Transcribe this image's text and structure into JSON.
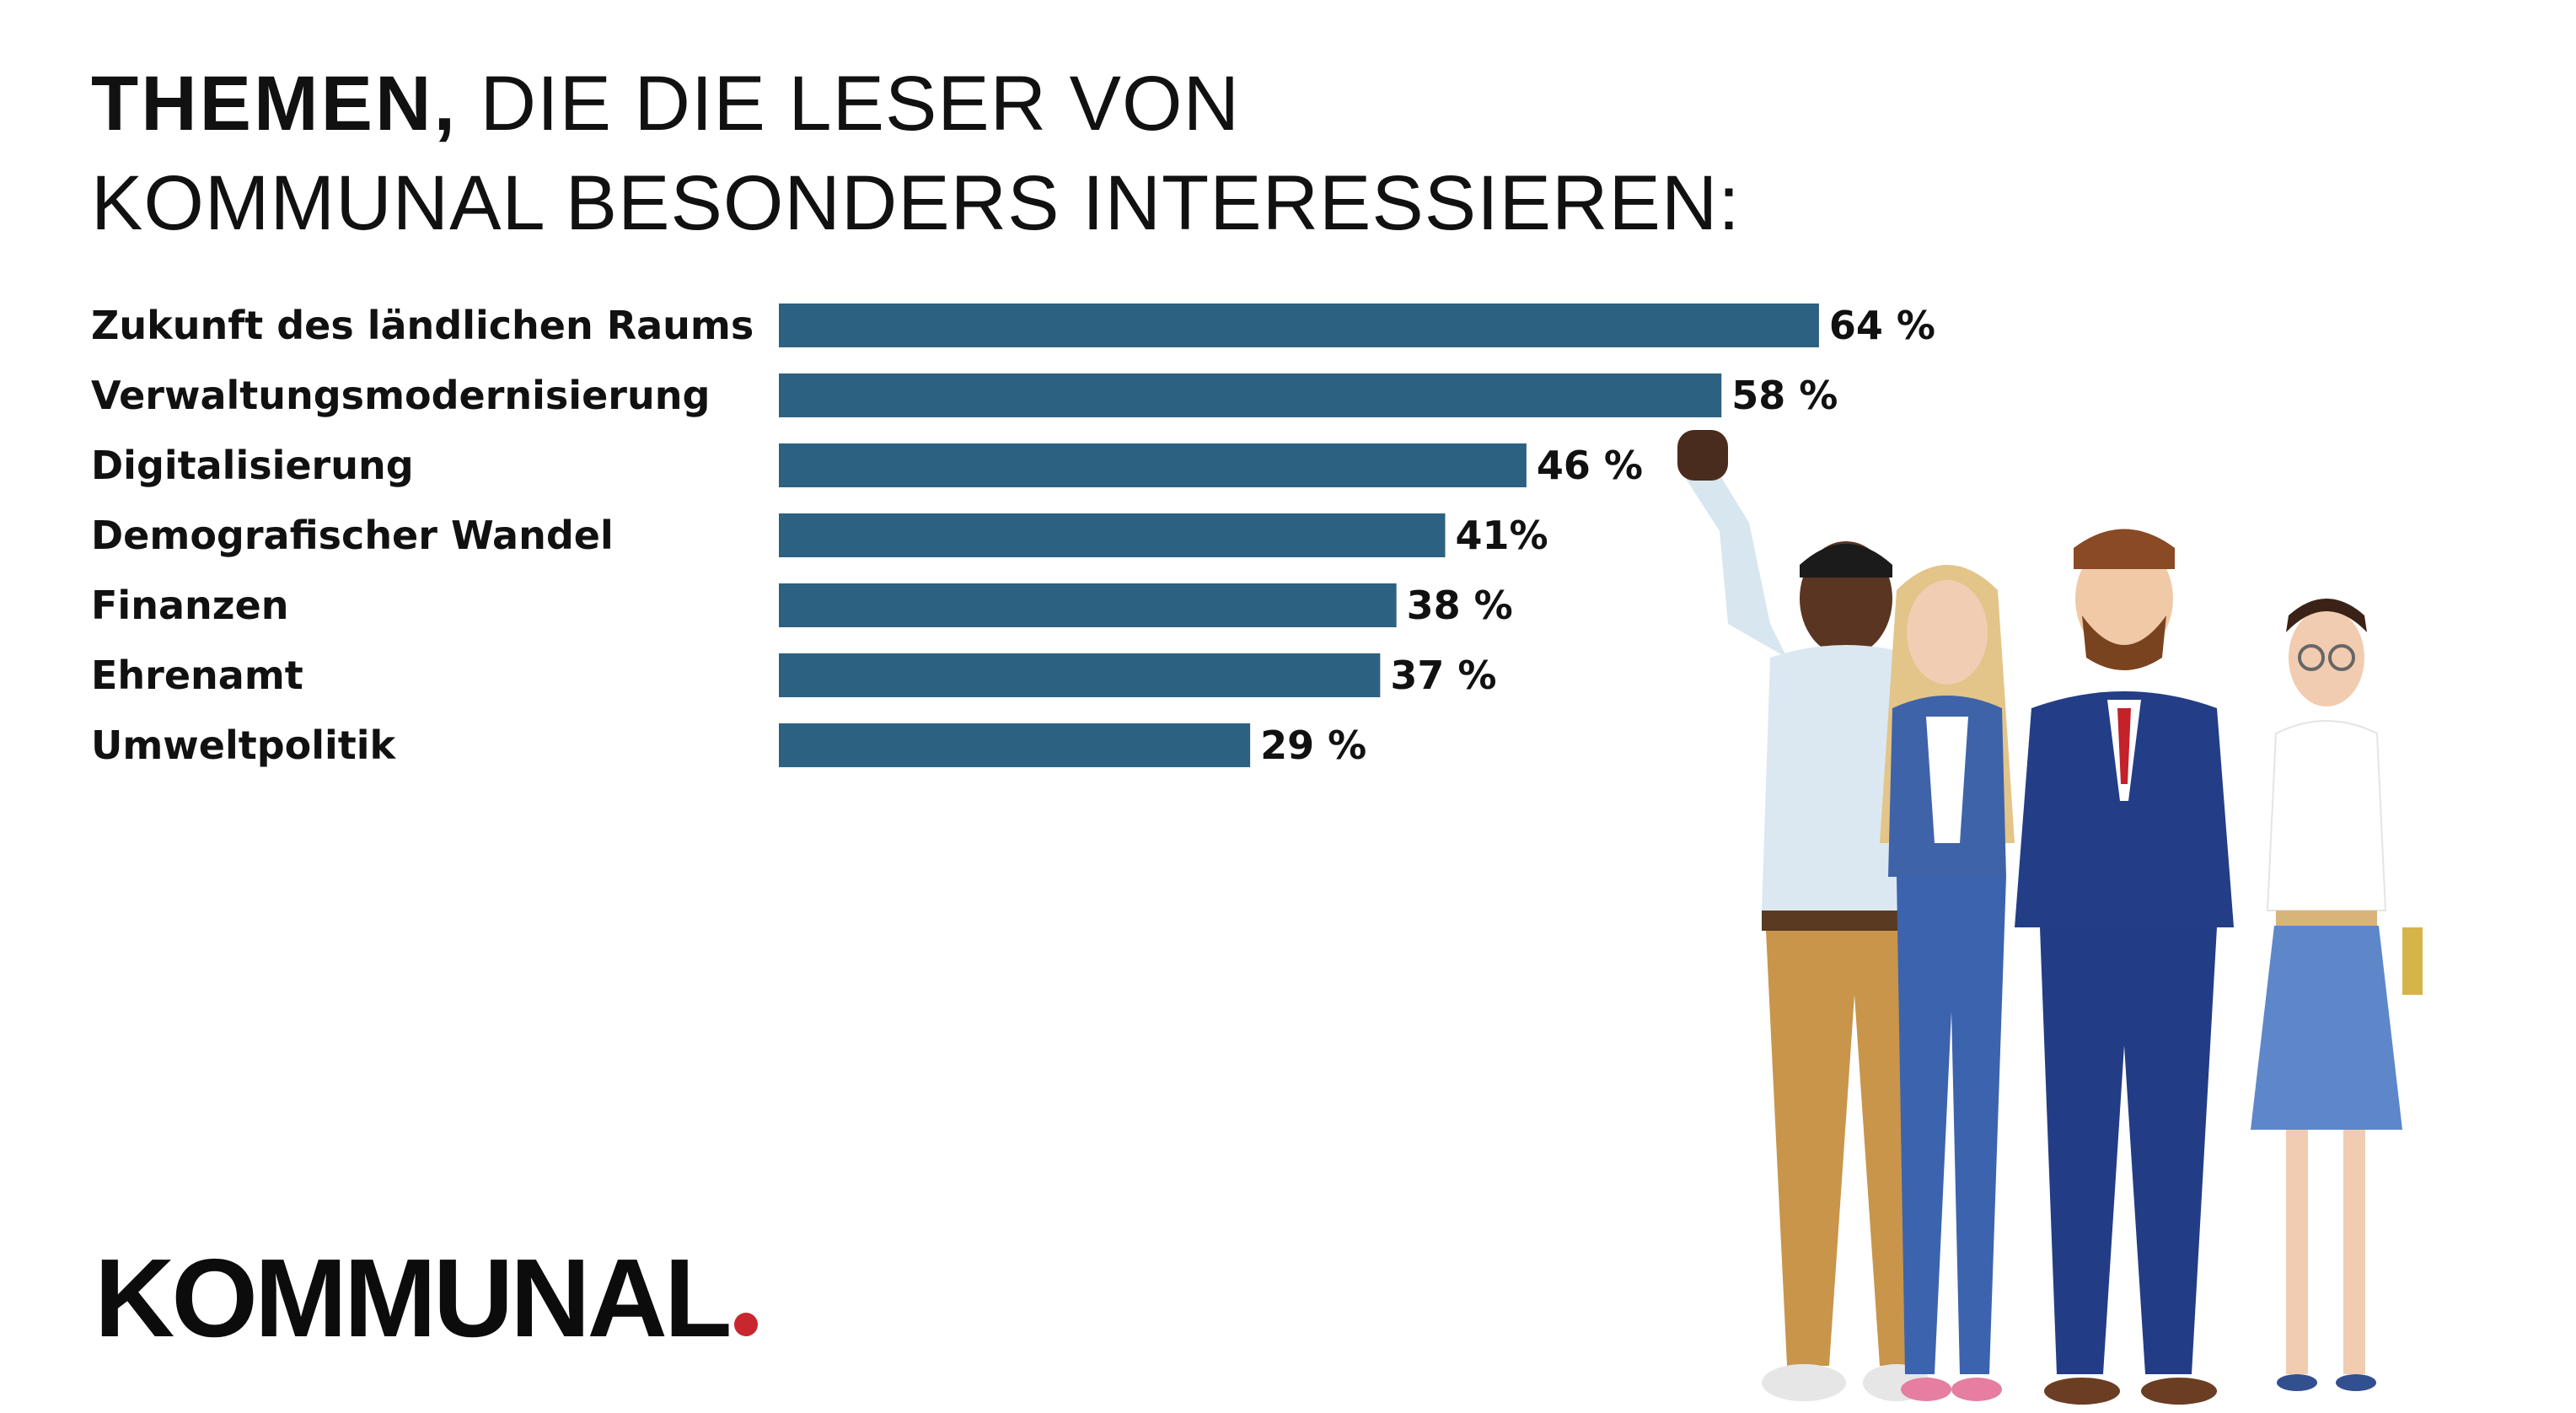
{
  "title": {
    "bold": "THEMEN,",
    "rest_line1": "DIE DIE LESER VON",
    "line2": "KOMMUNAL BESONDERS INTERESSIEREN:"
  },
  "chart_data": {
    "type": "bar",
    "orientation": "horizontal",
    "title": "THEMEN, DIE DIE LESER VON KOMMUNAL BESONDERS INTERESSIEREN:",
    "categories": [
      "Zukunft des ländlichen Raums",
      "Verwaltungsmodernisierung",
      "Digitalisierung",
      "Demografischer Wandel",
      "Finanzen",
      "Ehrenamt",
      "Umweltpolitik"
    ],
    "values": [
      64,
      58,
      46,
      41,
      38,
      37,
      29
    ],
    "value_labels": [
      "64 %",
      "58 %",
      "46 %",
      "41%",
      "38 %",
      "37 %",
      "29 %"
    ],
    "unit": "%",
    "xlim": [
      0,
      100
    ],
    "grid": false,
    "bar_color": "#2d6182"
  },
  "logo": {
    "text": "KOMMUNAL",
    "dot_color": "#c8272d"
  }
}
